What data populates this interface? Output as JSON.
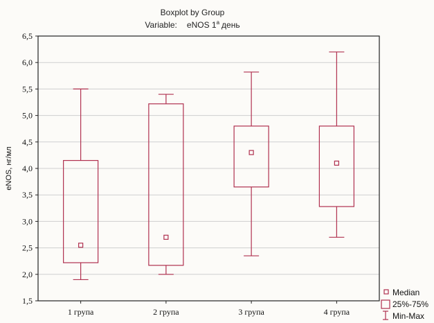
{
  "chart_data": {
    "type": "boxplot",
    "title": "Boxplot by Group",
    "variable_label": "Variable:",
    "variable_name": "eNOS 1",
    "variable_superscript": "а",
    "variable_suffix": "день",
    "ylabel": "eNOS, нг/мл",
    "ylim": [
      1.5,
      6.5
    ],
    "yticks": [
      "6,5",
      "6,0",
      "5,5",
      "5,0",
      "4,5",
      "4,0",
      "3,5",
      "3,0",
      "2,5",
      "2,0",
      "1,5"
    ],
    "ytick_values": [
      6.5,
      6.0,
      5.5,
      5.0,
      4.5,
      4.0,
      3.5,
      3.0,
      2.5,
      2.0,
      1.5
    ],
    "grid": true,
    "categories": [
      "1 група",
      "2 група",
      "3 група",
      "4 група"
    ],
    "boxes": [
      {
        "min": 1.9,
        "q1": 2.22,
        "median": 2.55,
        "q3": 4.15,
        "max": 5.5
      },
      {
        "min": 2.0,
        "q1": 2.17,
        "median": 2.7,
        "q3": 5.22,
        "max": 5.4
      },
      {
        "min": 2.35,
        "q1": 3.65,
        "median": 4.3,
        "q3": 4.8,
        "max": 5.82
      },
      {
        "min": 2.7,
        "q1": 3.28,
        "median": 4.1,
        "q3": 4.8,
        "max": 6.2
      }
    ],
    "legend": {
      "position": "bottom-right",
      "items": [
        "Median",
        "25%-75%",
        "Min-Max"
      ]
    },
    "colors": {
      "series": "#b0304f",
      "grid": "#cfcfcf",
      "axis": "#222222"
    }
  }
}
